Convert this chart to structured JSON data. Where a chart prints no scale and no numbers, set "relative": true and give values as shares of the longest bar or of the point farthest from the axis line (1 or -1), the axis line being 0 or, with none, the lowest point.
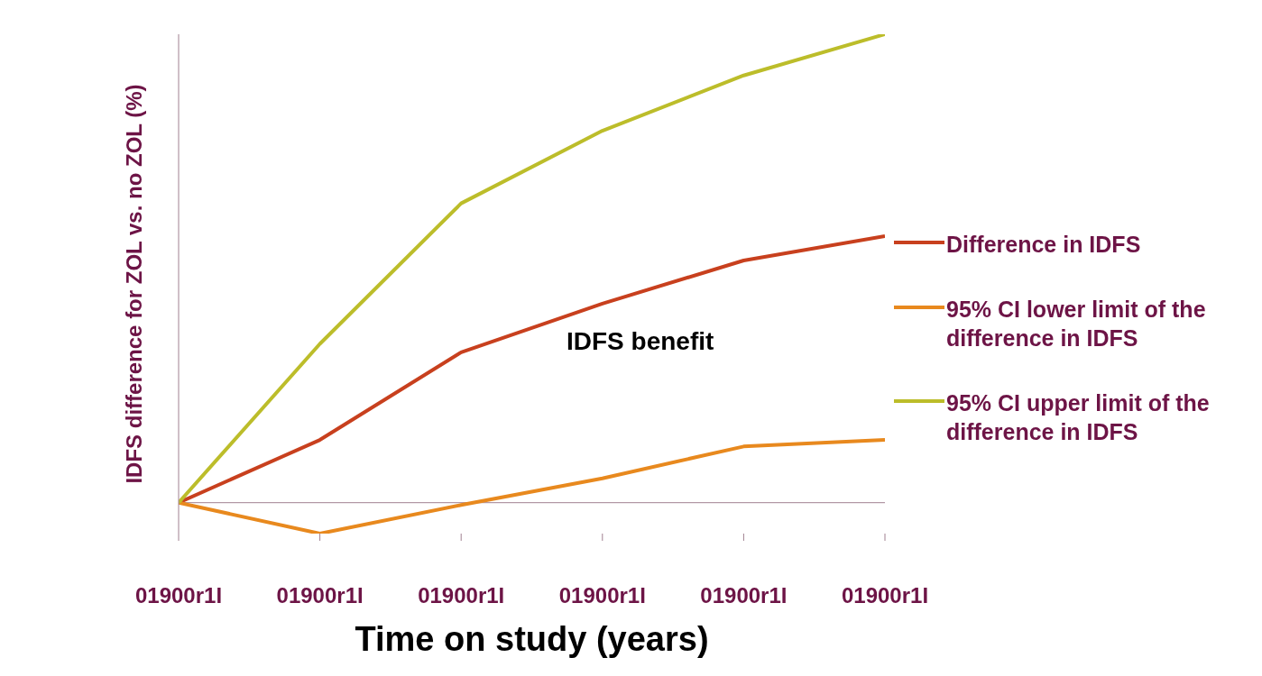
{
  "chart_data": {
    "type": "line",
    "xlabel": "Time on study (years)",
    "ylabel": "IDFS difference for ZOL vs. no ZOL (%)",
    "categories": [
      "01900r1I",
      "01900r1I",
      "01900r1I",
      "01900r1I",
      "01900r1I",
      "01900r1I"
    ],
    "series": [
      {
        "name": "Difference in IDFS",
        "color": "#c8401e",
        "values": [
          0,
          0.134,
          0.321,
          0.425,
          0.517,
          0.569
        ]
      },
      {
        "name": "95% CI lower limit of the difference in IDFS",
        "color": "#e8891e",
        "values": [
          0,
          -0.066,
          -0.005,
          0.052,
          0.12,
          0.134
        ]
      },
      {
        "name": "95% CI upper limit of the difference in IDFS",
        "color": "#bcbd2a",
        "values": [
          0,
          0.339,
          0.639,
          0.794,
          0.912,
          1
        ]
      }
    ],
    "relative": true,
    "annotations": [
      "IDFS benefit"
    ],
    "legend": "right",
    "marker": "none",
    "line_style": "solid"
  }
}
